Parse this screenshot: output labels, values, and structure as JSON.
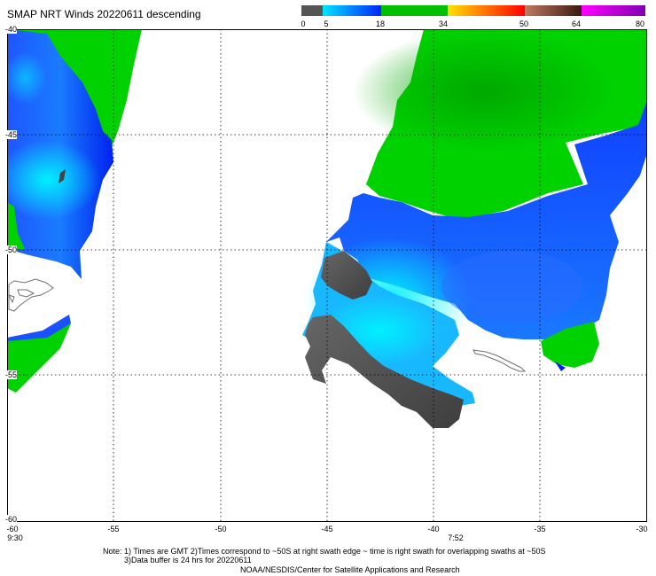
{
  "title": "SMAP NRT Winds  20220611  descending",
  "colorbar": {
    "labels": [
      "0",
      "5",
      "18",
      "34",
      "50",
      "64",
      "80"
    ],
    "colors": [
      "#555555",
      "#0a8cff",
      "#00c800",
      "#ffd000",
      "#ff2020",
      "#a07050",
      "#ff00ff",
      "#8a00c0"
    ]
  },
  "map": {
    "lat_labels": [
      "-40",
      "-45",
      "-50",
      "-55",
      "-60"
    ],
    "lon_labels": [
      "-60",
      "-55",
      "-50",
      "-45",
      "-40",
      "-35",
      "-30"
    ],
    "time_labels": [
      "9:30",
      "7:52"
    ],
    "colors": {
      "calm": "#555555",
      "light": "#00e5ff",
      "moderate": "#1a40ff",
      "fresh": "#00d200",
      "land_outline": "#707070"
    }
  },
  "notes": {
    "line1": "Note: 1) Times are GMT 2)Times correspond to ~50S at right swath edge ~ time is right swath for overlapping swaths at ~50S",
    "line2": "3)Data buffer is 24 hrs for 20220611",
    "line3": "NOAA/NESDIS/Center for Satellite Applications and Research"
  }
}
